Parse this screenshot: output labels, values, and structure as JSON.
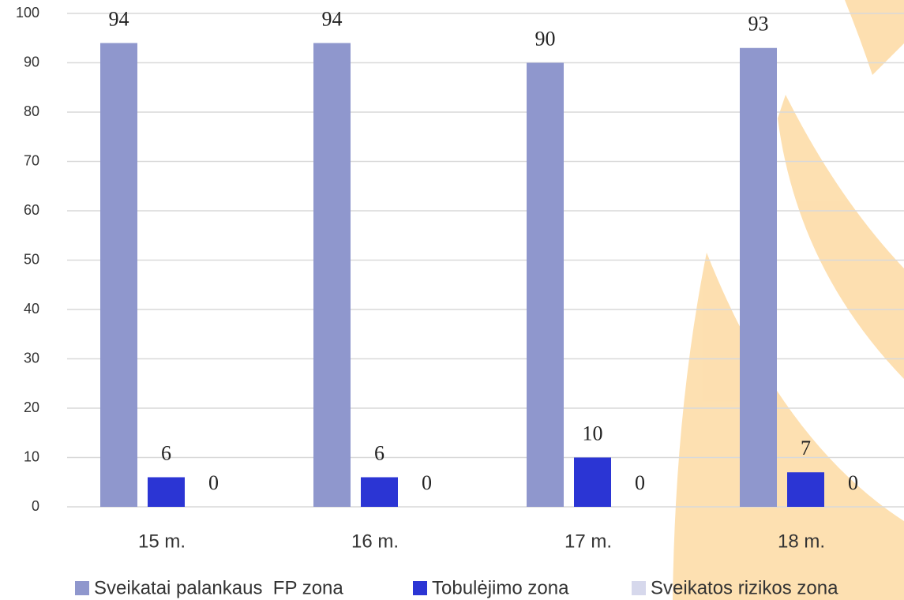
{
  "chart_data": {
    "type": "bar",
    "categories": [
      "15 m.",
      "16 m.",
      "17 m.",
      "18 m."
    ],
    "series": [
      {
        "name": "Sveikatai palankaus  FP zona",
        "color": "#8f97cd",
        "values": [
          94,
          94,
          90,
          93
        ]
      },
      {
        "name": "Tobulėjimo zona",
        "color": "#2b35d4",
        "values": [
          6,
          6,
          10,
          7
        ]
      },
      {
        "name": "Sveikatos rizikos zona",
        "color": "#d6d8ec",
        "values": [
          0,
          0,
          0,
          0
        ]
      }
    ],
    "ylim": [
      0,
      100
    ],
    "yticks": [
      0,
      10,
      20,
      30,
      40,
      50,
      60,
      70,
      80,
      90,
      100
    ],
    "grid": true,
    "legend": "bottom"
  }
}
